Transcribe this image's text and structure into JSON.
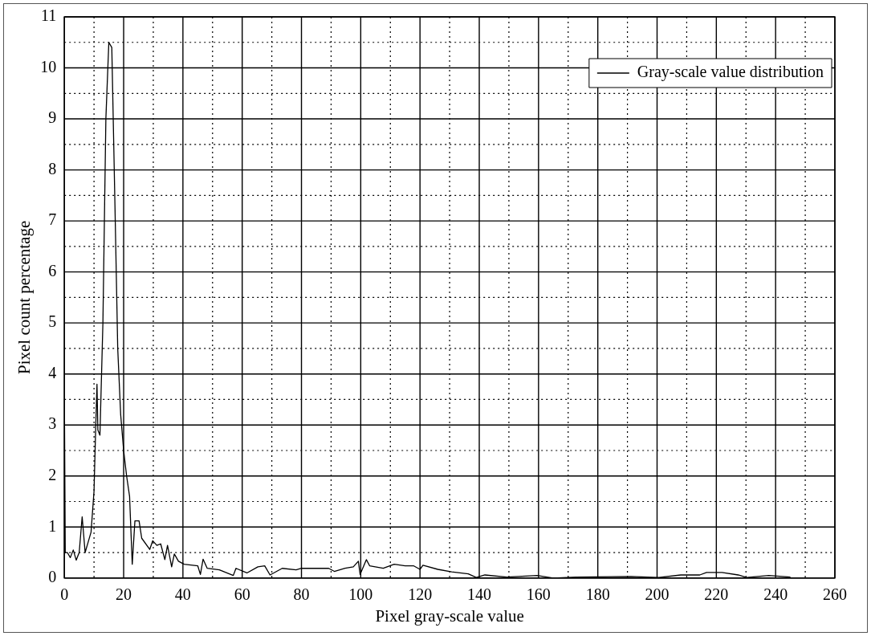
{
  "chart_data": {
    "type": "line",
    "xlabel": "Pixel gray-scale value",
    "ylabel": "Pixel count percentage",
    "xlim": [
      0,
      260
    ],
    "ylim": [
      0,
      11
    ],
    "xticks": [
      0,
      {
        "value": 10,
        "label": null
      },
      20,
      {
        "value": 30,
        "label": null
      },
      40,
      {
        "value": 50,
        "label": null
      },
      60,
      {
        "value": 70,
        "label": null
      },
      80,
      {
        "value": 90,
        "label": null
      },
      100,
      {
        "value": 110,
        "label": null
      },
      120,
      {
        "value": 130,
        "label": null
      },
      140,
      {
        "value": 150,
        "label": null
      },
      160,
      {
        "value": 170,
        "label": null
      },
      180,
      {
        "value": 190,
        "label": null
      },
      200,
      {
        "value": 210,
        "label": null
      },
      220,
      {
        "value": 230,
        "label": null
      },
      240,
      {
        "value": 250,
        "label": null
      },
      260
    ],
    "yticks": [
      0,
      {
        "value": 0.5,
        "label": null
      },
      1,
      {
        "value": 1.5,
        "label": null
      },
      2,
      {
        "value": 2.5,
        "label": null
      },
      3,
      {
        "value": 3.5,
        "label": null
      },
      4,
      {
        "value": 4.5,
        "label": null
      },
      5,
      {
        "value": 5.5,
        "label": null
      },
      6,
      {
        "value": 6.5,
        "label": null
      },
      7,
      {
        "value": 7.5,
        "label": null
      },
      8,
      {
        "value": 8.5,
        "label": null
      },
      9,
      {
        "value": 9.5,
        "label": null
      },
      10,
      {
        "value": 10.5,
        "label": null
      },
      11
    ],
    "grid": true,
    "legend": "top right",
    "marker": "none",
    "line_style": "solid",
    "series": [
      {
        "name": "Gray-scale value distribution",
        "color": "#000000",
        "x": [
          0,
          0.3,
          1,
          2,
          3,
          4,
          5,
          6,
          7,
          8,
          9,
          10,
          10.5,
          11,
          11.3,
          12,
          13,
          14,
          15,
          16,
          17,
          18,
          19,
          20,
          21,
          22,
          22.9,
          23.8,
          25.2,
          26.1,
          28.8,
          29.8,
          31.2,
          32.5,
          33.9,
          34.8,
          36.2,
          37.1,
          38.5,
          40.4,
          45,
          45.9,
          46.8,
          48.2,
          52.3,
          57,
          57.9,
          61.6,
          65.3,
          67.6,
          69.4,
          73.5,
          78.2,
          80,
          85.5,
          89.2,
          91.1,
          94.7,
          97.5,
          99.2,
          99.8,
          101.9,
          103,
          107.6,
          111.3,
          115,
          117.8,
          120,
          121,
          126,
          130.7,
          136.3,
          139,
          141.9,
          149.3,
          159.5,
          165,
          172.6,
          191.2,
          200.5,
          208,
          214.4,
          216.7,
          221.9,
          227.4,
          230.2,
          237.7,
          245
        ],
        "values": [
          3.6,
          0.5,
          0.5,
          0.4,
          0.55,
          0.35,
          0.5,
          1.2,
          0.5,
          0.7,
          0.9,
          1.7,
          2.8,
          3.8,
          2.9,
          2.8,
          5,
          9,
          10.5,
          10.4,
          7.5,
          4.5,
          3.2,
          2.5,
          2.0,
          1.6,
          0.27,
          1.12,
          1.12,
          0.78,
          0.56,
          0.73,
          0.64,
          0.67,
          0.36,
          0.64,
          0.22,
          0.47,
          0.33,
          0.27,
          0.24,
          0.07,
          0.37,
          0.19,
          0.16,
          0.05,
          0.19,
          0.1,
          0.22,
          0.24,
          0.06,
          0.19,
          0.16,
          0.19,
          0.19,
          0.19,
          0.13,
          0.19,
          0.22,
          0.33,
          0.07,
          0.36,
          0.24,
          0.19,
          0.27,
          0.24,
          0.24,
          0.17,
          0.25,
          0.17,
          0.12,
          0.08,
          0.01,
          0.06,
          0.02,
          0.05,
          0,
          0.02,
          0.03,
          0.01,
          0.06,
          0.06,
          0.11,
          0.11,
          0.06,
          0.01,
          0.05,
          0.02
        ]
      }
    ]
  }
}
